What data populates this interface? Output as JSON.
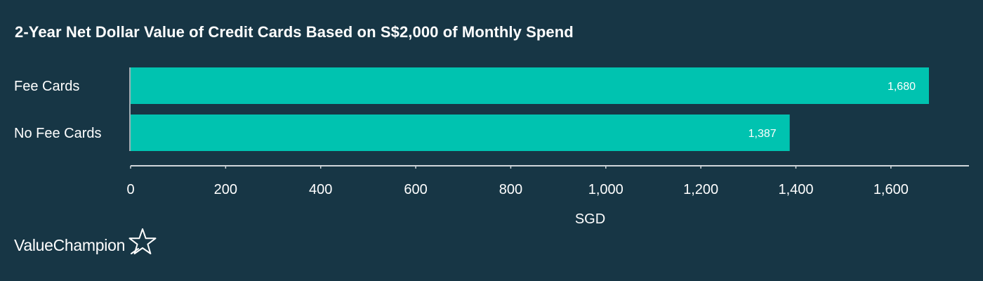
{
  "chart_data": {
    "type": "bar",
    "orientation": "horizontal",
    "title": "2-Year Net Dollar Value of Credit Cards Based on S$2,000 of Monthly Spend",
    "xlabel": "SGD",
    "ylabel": "",
    "categories": [
      "Fee Cards",
      "No Fee Cards"
    ],
    "values": [
      1680,
      1387
    ],
    "value_labels": [
      "1,680",
      "1,387"
    ],
    "xlim": [
      0,
      1760
    ],
    "ticks": [
      0,
      200,
      400,
      600,
      800,
      1000,
      1200,
      1400,
      1600
    ],
    "tick_labels": [
      "0",
      "200",
      "400",
      "600",
      "800",
      "1,000",
      "1,200",
      "1,400",
      "1,600"
    ],
    "grid": false,
    "legend": "none",
    "colors": {
      "bar": "#00c3b0",
      "background": "#173645",
      "axis": "#d0d6da",
      "text": "#ffffff"
    }
  },
  "brand": {
    "name": "ValueChampion",
    "icon": "star-outline-icon"
  }
}
